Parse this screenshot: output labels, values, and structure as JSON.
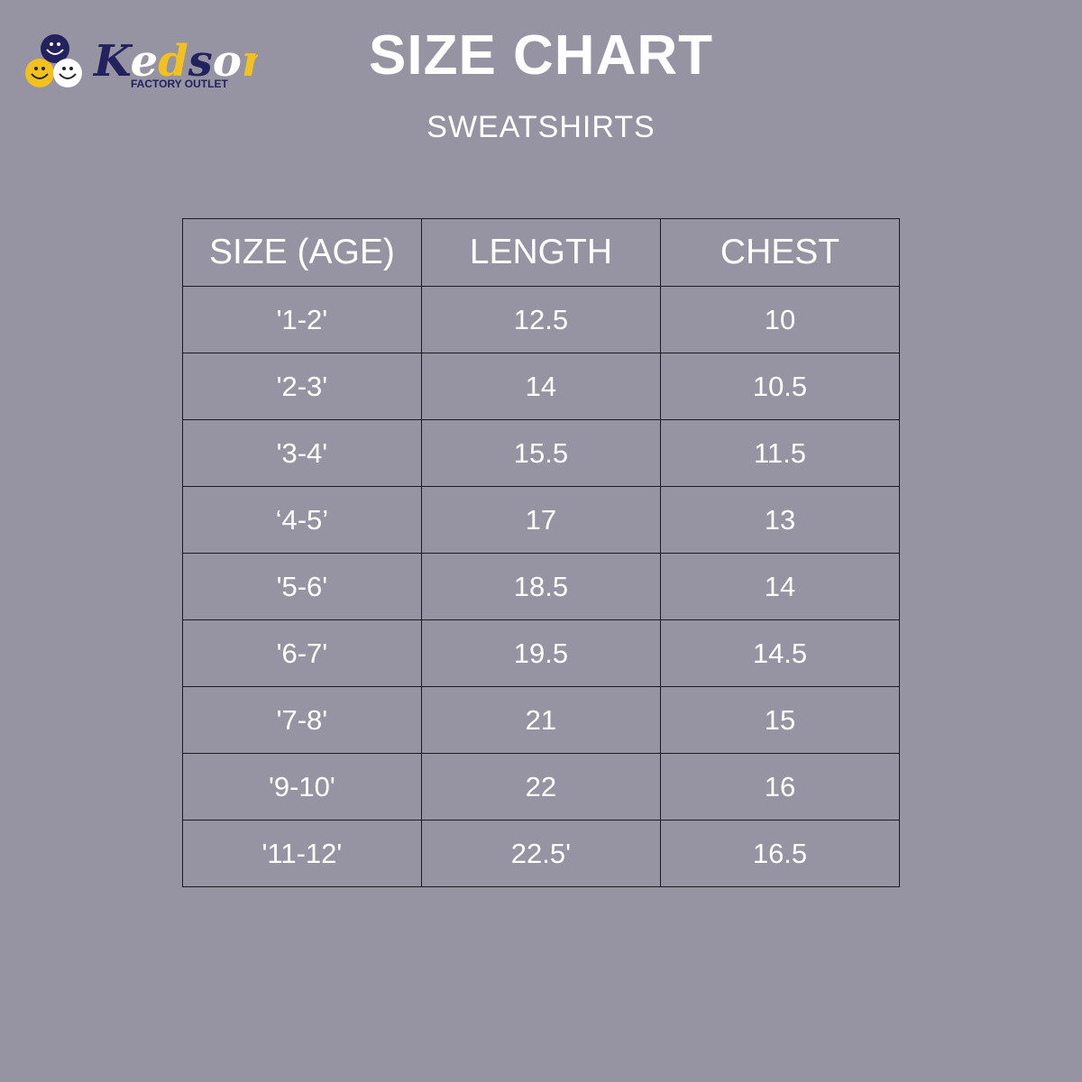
{
  "logo": {
    "brand": "Kedson",
    "tagline": "FACTORY OUTLET"
  },
  "title": "SIZE CHART",
  "subtitle": "SWEATSHIRTS",
  "colors": {
    "background": "#9693a2",
    "navy": "#23225e",
    "yellow": "#f2c11e"
  },
  "table": {
    "headers": [
      "SIZE (AGE)",
      "LENGTH",
      "CHEST"
    ],
    "rows": [
      [
        "'1-2'",
        "12.5",
        "10"
      ],
      [
        "'2-3'",
        "14",
        "10.5"
      ],
      [
        "'3-4'",
        "15.5",
        "11.5"
      ],
      [
        "‘4-5’",
        "17",
        "13"
      ],
      [
        "'5-6'",
        "18.5",
        "14"
      ],
      [
        "'6-7'",
        "19.5",
        "14.5"
      ],
      [
        "'7-8'",
        "21",
        "15"
      ],
      [
        "'9-10'",
        "22",
        "16"
      ],
      [
        "'11-12'",
        "22.5'",
        "16.5"
      ]
    ]
  }
}
